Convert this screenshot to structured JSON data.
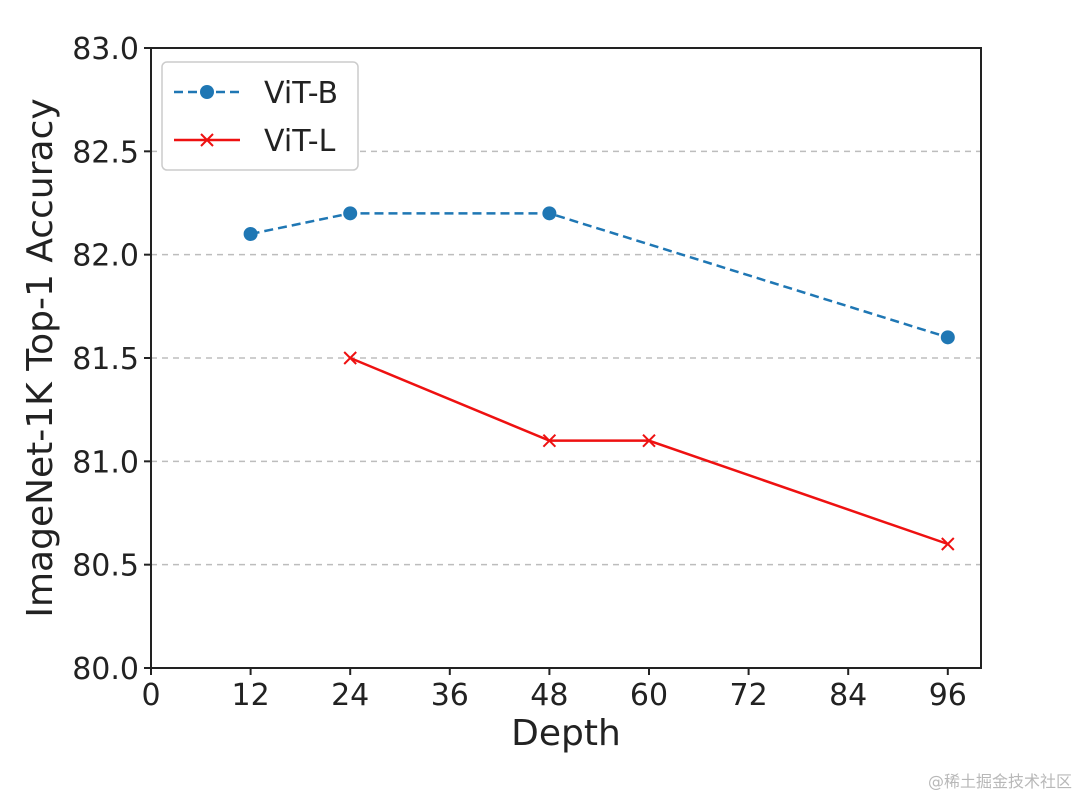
{
  "chart_data": {
    "type": "line",
    "title": "",
    "xlabel": "Depth",
    "ylabel": "ImageNet-1K Top-1 Accuracy",
    "xlim": [
      0,
      100
    ],
    "ylim": [
      80.0,
      83.0
    ],
    "xticks": [
      0,
      12,
      24,
      36,
      48,
      60,
      72,
      84,
      96
    ],
    "xtick_labels": [
      "0",
      "12",
      "24",
      "36",
      "48",
      "60",
      "72",
      "84",
      "96"
    ],
    "yticks": [
      80.0,
      80.5,
      81.0,
      81.5,
      82.0,
      82.5,
      83.0
    ],
    "ytick_labels": [
      "80.0",
      "80.5",
      "81.0",
      "81.5",
      "82.0",
      "82.5",
      "83.0"
    ],
    "grid": "horizontal-dashed",
    "legend_position": "top-left",
    "series": [
      {
        "name": "ViT-B",
        "color": "#1f77b4",
        "linestyle": "dashed",
        "marker": "circle",
        "x": [
          12,
          24,
          48,
          96
        ],
        "y": [
          82.1,
          82.2,
          82.2,
          81.6
        ]
      },
      {
        "name": "ViT-L",
        "color": "#ee1111",
        "linestyle": "solid",
        "marker": "x",
        "x": [
          24,
          48,
          60,
          96
        ],
        "y": [
          81.5,
          81.1,
          81.1,
          80.6
        ]
      }
    ]
  },
  "watermark": "@稀土掘金技术社区"
}
